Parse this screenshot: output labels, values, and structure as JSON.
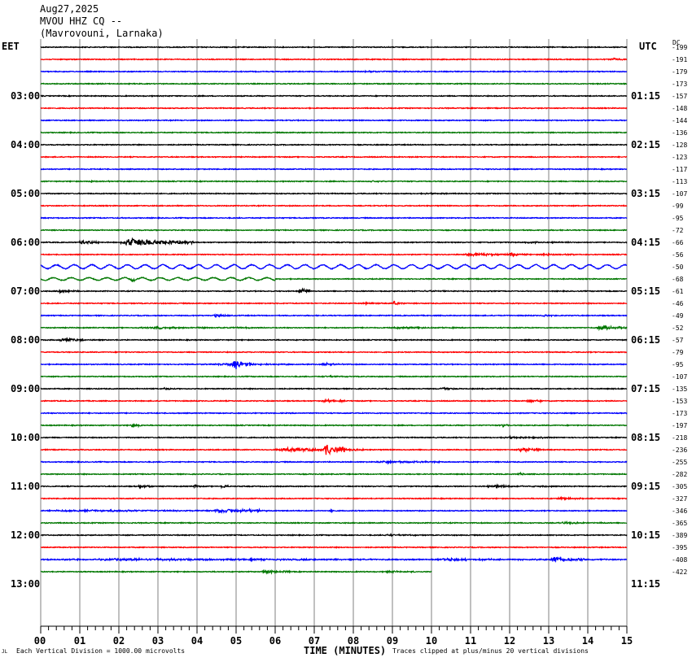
{
  "header": {
    "date": "Aug27,2025",
    "station": "MVOU HHZ CQ --",
    "location": "(Mavrovouni, Larnaka)"
  },
  "left_zone": "EET",
  "right_zone": "UTC",
  "dc_label": "DC",
  "footer": {
    "scale_note": "Each Vertical Division = 1000.00 microvolts",
    "xlabel": "TIME (MINUTES)",
    "clip_note": "Traces clipped at plus/minus 20 vertical divisions",
    "corner_mark": "JL"
  },
  "colors": {
    "trace_cycle": [
      "#000000",
      "#ff0000",
      "#0000ff",
      "#007700"
    ],
    "grid": "#808080"
  },
  "chart_data": {
    "type": "line",
    "title": "MVOU HHZ CQ --",
    "xlabel": "TIME (MINUTES)",
    "x_range": [
      0,
      15
    ],
    "x_ticks": [
      "00",
      "01",
      "02",
      "03",
      "04",
      "05",
      "06",
      "07",
      "08",
      "09",
      "10",
      "11",
      "12",
      "13",
      "14",
      "15"
    ],
    "num_traces": 44,
    "trace_minutes": 15,
    "hour_labels_left": [
      "03:00",
      "04:00",
      "05:00",
      "06:00",
      "07:00",
      "08:00",
      "09:00",
      "10:00",
      "11:00",
      "12:00",
      "13:00"
    ],
    "hour_labels_right": [
      "01:15",
      "02:15",
      "03:15",
      "04:15",
      "05:15",
      "06:15",
      "07:15",
      "08:15",
      "09:15",
      "10:15",
      "11:15"
    ],
    "hour_label_trace_index": [
      4,
      8,
      12,
      16,
      20,
      24,
      28,
      32,
      36,
      40,
      44
    ],
    "dc_offsets": [
      -199,
      -191,
      -179,
      -173,
      -157,
      -148,
      -144,
      -136,
      -128,
      -123,
      -117,
      -113,
      -107,
      -99,
      -95,
      -72,
      -66,
      -56,
      -50,
      -68,
      -61,
      -46,
      -49,
      -52,
      -57,
      -79,
      -95,
      -107,
      -135,
      -153,
      -173,
      -197,
      -218,
      -236,
      -255,
      -282,
      -305,
      -327,
      -346,
      -365,
      -389,
      -395,
      -408,
      -422
    ],
    "last_trace_end_minute": 10,
    "events": [
      {
        "trace": 1,
        "start": 14.6,
        "end": 15.0,
        "amp": 3
      },
      {
        "trace": 2,
        "start": 8.2,
        "end": 9.8,
        "amp": 1.2
      },
      {
        "trace": 11,
        "start": 1.2,
        "end": 1.8,
        "amp": 1.2
      },
      {
        "trace": 11,
        "start": 8.4,
        "end": 8.9,
        "amp": 1.2
      },
      {
        "trace": 12,
        "start": 9.8,
        "end": 10.4,
        "amp": 1.2
      },
      {
        "trace": 16,
        "start": 1.0,
        "end": 1.5,
        "amp": 4
      },
      {
        "trace": 16,
        "start": 2.05,
        "end": 3.9,
        "amp": 7
      },
      {
        "trace": 16,
        "start": 12.4,
        "end": 13.6,
        "amp": 1.5
      },
      {
        "trace": 17,
        "start": 10.8,
        "end": 12.5,
        "amp": 2.5
      },
      {
        "trace": 17,
        "start": 12.0,
        "end": 12.2,
        "amp": 6
      },
      {
        "trace": 17,
        "start": 12.8,
        "end": 13.8,
        "amp": 1.5
      },
      {
        "trace": 18,
        "start": 0.0,
        "end": 15.0,
        "amp": 3,
        "wave": true
      },
      {
        "trace": 19,
        "start": 0.0,
        "end": 6.0,
        "amp": 2,
        "wave": true
      },
      {
        "trace": 19,
        "start": 2.3,
        "end": 2.5,
        "amp": 4
      },
      {
        "trace": 20,
        "start": 0.4,
        "end": 1.0,
        "amp": 2
      },
      {
        "trace": 20,
        "start": 6.6,
        "end": 6.9,
        "amp": 7
      },
      {
        "trace": 20,
        "start": 9.6,
        "end": 10.6,
        "amp": 1.5
      },
      {
        "trace": 21,
        "start": 9.0,
        "end": 9.3,
        "amp": 4
      },
      {
        "trace": 21,
        "start": 8.2,
        "end": 9.0,
        "amp": 1.2
      },
      {
        "trace": 22,
        "start": 4.4,
        "end": 4.9,
        "amp": 3
      },
      {
        "trace": 22,
        "start": 12.8,
        "end": 13.3,
        "amp": 1.5
      },
      {
        "trace": 23,
        "start": 2.5,
        "end": 5.5,
        "amp": 1.5
      },
      {
        "trace": 23,
        "start": 8.9,
        "end": 10.6,
        "amp": 1.5
      },
      {
        "trace": 23,
        "start": 14.2,
        "end": 15.0,
        "amp": 4
      },
      {
        "trace": 24,
        "start": 0.5,
        "end": 1.1,
        "amp": 4
      },
      {
        "trace": 26,
        "start": 4.2,
        "end": 7.8,
        "amp": 1.5
      },
      {
        "trace": 26,
        "start": 4.9,
        "end": 5.4,
        "amp": 9
      },
      {
        "trace": 26,
        "start": 7.2,
        "end": 7.5,
        "amp": 3
      },
      {
        "trace": 27,
        "start": 7.2,
        "end": 8.0,
        "amp": 1.2
      },
      {
        "trace": 28,
        "start": 3.1,
        "end": 3.4,
        "amp": 2
      },
      {
        "trace": 28,
        "start": 10.2,
        "end": 10.6,
        "amp": 3
      },
      {
        "trace": 29,
        "start": 7.2,
        "end": 7.8,
        "amp": 2.5
      },
      {
        "trace": 29,
        "start": 12.4,
        "end": 12.8,
        "amp": 3
      },
      {
        "trace": 31,
        "start": 2.3,
        "end": 2.6,
        "amp": 4
      },
      {
        "trace": 31,
        "start": 11.8,
        "end": 12.0,
        "amp": 3
      },
      {
        "trace": 32,
        "start": 11.8,
        "end": 13.0,
        "amp": 1.5
      },
      {
        "trace": 33,
        "start": 6.0,
        "end": 8.3,
        "amp": 3
      },
      {
        "trace": 33,
        "start": 7.2,
        "end": 7.8,
        "amp": 10
      },
      {
        "trace": 33,
        "start": 12.2,
        "end": 12.8,
        "amp": 5
      },
      {
        "trace": 34,
        "start": 8.6,
        "end": 10.2,
        "amp": 2
      },
      {
        "trace": 35,
        "start": 12.2,
        "end": 12.4,
        "amp": 3
      },
      {
        "trace": 36,
        "start": 2.5,
        "end": 2.9,
        "amp": 3
      },
      {
        "trace": 36,
        "start": 3.9,
        "end": 4.1,
        "amp": 4
      },
      {
        "trace": 36,
        "start": 4.6,
        "end": 4.8,
        "amp": 4
      },
      {
        "trace": 36,
        "start": 11.4,
        "end": 13.1,
        "amp": 2
      },
      {
        "trace": 37,
        "start": 13.2,
        "end": 14.0,
        "amp": 2
      },
      {
        "trace": 38,
        "start": 0.2,
        "end": 5.8,
        "amp": 1.5
      },
      {
        "trace": 38,
        "start": 4.4,
        "end": 5.6,
        "amp": 4
      },
      {
        "trace": 38,
        "start": 7.4,
        "end": 7.5,
        "amp": 4
      },
      {
        "trace": 39,
        "start": 13.2,
        "end": 14.5,
        "amp": 1.5
      },
      {
        "trace": 40,
        "start": 8.8,
        "end": 9.6,
        "amp": 1.5
      },
      {
        "trace": 42,
        "start": 0.0,
        "end": 15.0,
        "amp": 1.5
      },
      {
        "trace": 42,
        "start": 10.2,
        "end": 11.6,
        "amp": 2.5
      },
      {
        "trace": 42,
        "start": 13.0,
        "end": 13.9,
        "amp": 5
      },
      {
        "trace": 43,
        "start": 5.6,
        "end": 6.4,
        "amp": 3
      },
      {
        "trace": 43,
        "start": 8.8,
        "end": 9.6,
        "amp": 1.5
      }
    ]
  }
}
